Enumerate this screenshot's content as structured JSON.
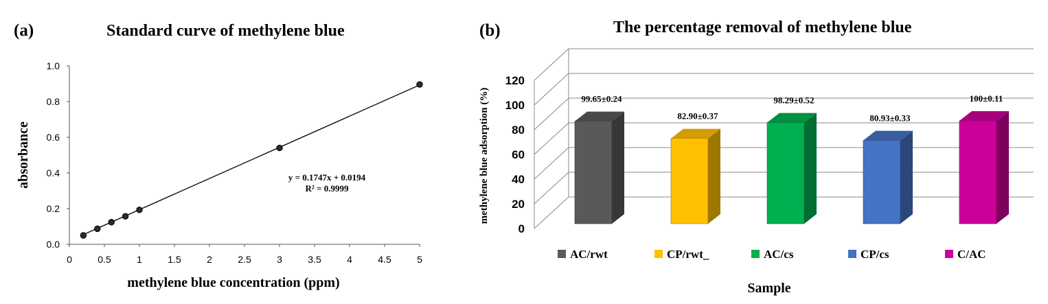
{
  "chart_data": [
    {
      "panel": "(a)",
      "type": "scatter",
      "title": "Standard curve of methylene blue",
      "xlabel": "methylene blue concentration (ppm)",
      "ylabel": "absorbance",
      "x_ticks": [
        "0",
        "0.5",
        "1",
        "1.5",
        "2",
        "2.5",
        "3",
        "3.5",
        "4",
        "4.5",
        "5"
      ],
      "y_ticks": [
        "0.0",
        "0.2",
        "0.4",
        "0.6",
        "0.8",
        "1.0"
      ],
      "xlim": [
        0,
        5
      ],
      "ylim": [
        0,
        1.0
      ],
      "points": [
        {
          "x": 0.2,
          "y": 0.05
        },
        {
          "x": 0.4,
          "y": 0.087
        },
        {
          "x": 0.6,
          "y": 0.124
        },
        {
          "x": 0.8,
          "y": 0.157
        },
        {
          "x": 1.0,
          "y": 0.193
        },
        {
          "x": 3.0,
          "y": 0.54
        },
        {
          "x": 5.0,
          "y": 0.896
        }
      ],
      "trendline": {
        "slope": 0.1747,
        "intercept": 0.0194,
        "x_range": [
          0.2,
          5
        ]
      },
      "equation": "y = 0.1747x + 0.0194",
      "r_squared": "R² = 0.9999"
    },
    {
      "panel": "(b)",
      "type": "bar",
      "style": "3d",
      "title": "The percentage  removal of methylene blue",
      "xlabel": "Sample",
      "ylabel": "methylene  blue  adsorption  (%)",
      "y_ticks": [
        "0",
        "20",
        "40",
        "60",
        "80",
        "100",
        "120"
      ],
      "ylim": [
        0,
        120
      ],
      "categories": [
        "AC/rwt",
        "CP/rwt_",
        "AC/cs",
        "CP/cs",
        "C/AC"
      ],
      "values": [
        99.65,
        82.9,
        98.29,
        80.93,
        100
      ],
      "data_labels": [
        "99.65±0.24",
        "82.90±0.37",
        "98.29±0.52",
        "80.93±0.33",
        "100±0.11"
      ],
      "colors": [
        "#595959",
        "#FFC000",
        "#00B050",
        "#4472C4",
        "#CC0099"
      ]
    }
  ]
}
